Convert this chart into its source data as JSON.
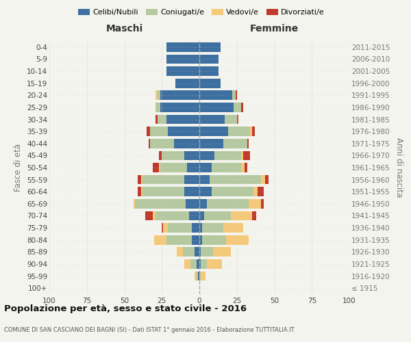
{
  "age_groups": [
    "100+",
    "95-99",
    "90-94",
    "85-89",
    "80-84",
    "75-79",
    "70-74",
    "65-69",
    "60-64",
    "55-59",
    "50-54",
    "45-49",
    "40-44",
    "35-39",
    "30-34",
    "25-29",
    "20-24",
    "15-19",
    "10-14",
    "5-9",
    "0-4"
  ],
  "birth_years": [
    "≤ 1915",
    "1916-1920",
    "1921-1925",
    "1926-1930",
    "1931-1935",
    "1936-1940",
    "1941-1945",
    "1946-1950",
    "1951-1955",
    "1956-1960",
    "1961-1965",
    "1966-1970",
    "1971-1975",
    "1976-1980",
    "1981-1985",
    "1986-1990",
    "1991-1995",
    "1996-2000",
    "2001-2005",
    "2006-2010",
    "2011-2015"
  ],
  "maschi": {
    "celibi": [
      0,
      1,
      2,
      3,
      5,
      5,
      7,
      9,
      10,
      10,
      8,
      10,
      17,
      21,
      22,
      26,
      26,
      16,
      22,
      22,
      22
    ],
    "coniugati": [
      0,
      1,
      4,
      8,
      17,
      16,
      22,
      34,
      28,
      28,
      18,
      15,
      16,
      12,
      6,
      3,
      2,
      0,
      0,
      0,
      0
    ],
    "vedovi": [
      0,
      1,
      4,
      4,
      8,
      3,
      2,
      1,
      1,
      1,
      1,
      0,
      0,
      0,
      0,
      0,
      1,
      0,
      0,
      0,
      0
    ],
    "divorziati": [
      0,
      0,
      0,
      0,
      0,
      1,
      5,
      0,
      2,
      2,
      4,
      2,
      1,
      2,
      1,
      0,
      0,
      0,
      0,
      0,
      0
    ]
  },
  "femmine": {
    "nubili": [
      0,
      0,
      1,
      1,
      2,
      2,
      3,
      5,
      8,
      7,
      8,
      10,
      16,
      19,
      17,
      23,
      22,
      14,
      13,
      13,
      14
    ],
    "coniugate": [
      0,
      1,
      4,
      8,
      16,
      14,
      18,
      28,
      28,
      34,
      20,
      18,
      16,
      15,
      8,
      5,
      2,
      0,
      0,
      0,
      0
    ],
    "vedove": [
      0,
      3,
      10,
      12,
      15,
      13,
      14,
      8,
      3,
      3,
      2,
      1,
      0,
      1,
      0,
      0,
      0,
      0,
      0,
      0,
      0
    ],
    "divorziate": [
      0,
      0,
      0,
      0,
      0,
      0,
      3,
      2,
      4,
      2,
      2,
      5,
      1,
      2,
      1,
      1,
      1,
      0,
      0,
      0,
      0
    ]
  },
  "colors": {
    "celibi": "#3d6fa0",
    "coniugati": "#b5c9a0",
    "vedovi": "#f5c97a",
    "divorziati": "#c0392b"
  },
  "xlim": 100,
  "title": "Popolazione per età, sesso e stato civile - 2016",
  "subtitle": "COMUNE DI SAN CASCIANO DEI BAGNI (SI) - Dati ISTAT 1° gennaio 2016 - Elaborazione TUTTITALIA.IT",
  "ylabel_left": "Fasce di età",
  "ylabel_right": "Anni di nascita",
  "xlabel_maschi": "Maschi",
  "xlabel_femmine": "Femmine",
  "background_color": "#f4f4ee",
  "grid_color": "#cccccc",
  "legend": [
    "Celibi/Nubili",
    "Coniugati/e",
    "Vedovi/e",
    "Divorziati/e"
  ]
}
